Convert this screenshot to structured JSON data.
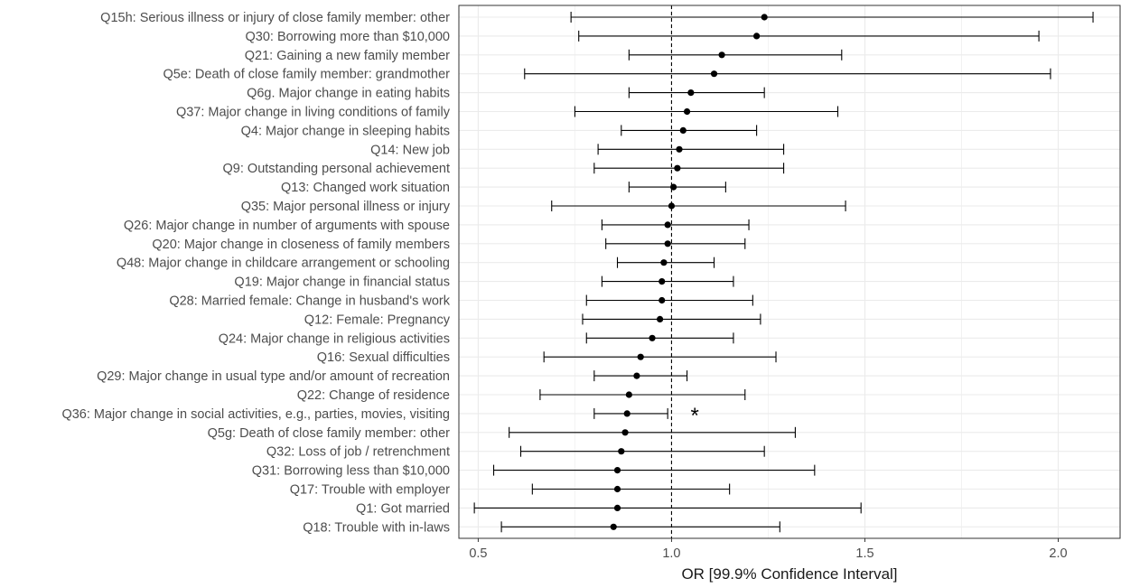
{
  "chart_data": {
    "type": "scatter",
    "subtype": "forest-plot",
    "title": "",
    "xlabel": "OR [99.9% Confidence Interval]",
    "ylabel": "",
    "xlim": [
      0.45,
      2.16
    ],
    "x_ticks": [
      0.5,
      1.0,
      1.5,
      2.0
    ],
    "x_tick_labels": [
      "0.5",
      "1.0",
      "1.5",
      "2.0"
    ],
    "reference_line": 1.0,
    "grid": true,
    "legend": "none",
    "colors": {
      "point": "#000000",
      "errorbar": "#000000",
      "grid": "#ebebeb",
      "panel_border": "#333333",
      "reference_line": "#000000"
    },
    "points": [
      {
        "label": "Q15h: Serious illness or injury of close family member: other",
        "or": 1.24,
        "lo": 0.74,
        "hi": 2.09
      },
      {
        "label": "Q30: Borrowing more than $10,000",
        "or": 1.22,
        "lo": 0.76,
        "hi": 1.95
      },
      {
        "label": "Q21: Gaining a new family member",
        "or": 1.13,
        "lo": 0.89,
        "hi": 1.44
      },
      {
        "label": "Q5e: Death of close family member: grandmother",
        "or": 1.11,
        "lo": 0.62,
        "hi": 1.98
      },
      {
        "label": "Q6g. Major change in eating habits",
        "or": 1.05,
        "lo": 0.89,
        "hi": 1.24
      },
      {
        "label": "Q37: Major change in living conditions of family",
        "or": 1.04,
        "lo": 0.75,
        "hi": 1.43
      },
      {
        "label": "Q4: Major change in sleeping habits",
        "or": 1.03,
        "lo": 0.87,
        "hi": 1.22
      },
      {
        "label": "Q14: New job",
        "or": 1.02,
        "lo": 0.81,
        "hi": 1.29
      },
      {
        "label": "Q9: Outstanding personal achievement",
        "or": 1.015,
        "lo": 0.8,
        "hi": 1.29
      },
      {
        "label": "Q13: Changed work situation",
        "or": 1.005,
        "lo": 0.89,
        "hi": 1.14
      },
      {
        "label": "Q35: Major personal illness or injury",
        "or": 1.0,
        "lo": 0.69,
        "hi": 1.45
      },
      {
        "label": "Q26: Major change in number of arguments with spouse",
        "or": 0.99,
        "lo": 0.82,
        "hi": 1.2
      },
      {
        "label": "Q20: Major change in closeness of family members",
        "or": 0.99,
        "lo": 0.83,
        "hi": 1.19
      },
      {
        "label": "Q48: Major change in childcare arrangement or schooling",
        "or": 0.98,
        "lo": 0.86,
        "hi": 1.11
      },
      {
        "label": "Q19: Major change in financial status",
        "or": 0.975,
        "lo": 0.82,
        "hi": 1.16
      },
      {
        "label": "Q28: Married female: Change in husband's work",
        "or": 0.975,
        "lo": 0.78,
        "hi": 1.21
      },
      {
        "label": "Q12: Female: Pregnancy",
        "or": 0.97,
        "lo": 0.77,
        "hi": 1.23
      },
      {
        "label": "Q24: Major change in religious activities",
        "or": 0.95,
        "lo": 0.78,
        "hi": 1.16
      },
      {
        "label": "Q16: Sexual difficulties",
        "or": 0.92,
        "lo": 0.67,
        "hi": 1.27
      },
      {
        "label": "Q29: Major change in usual type and/or amount of recreation",
        "or": 0.91,
        "lo": 0.8,
        "hi": 1.04
      },
      {
        "label": "Q22: Change of residence",
        "or": 0.89,
        "lo": 0.66,
        "hi": 1.19
      },
      {
        "label": "Q36: Major change in social activities, e.g., parties, movies, visiting",
        "or": 0.885,
        "lo": 0.8,
        "hi": 0.99,
        "annotation": "*"
      },
      {
        "label": "Q5g: Death of close family member: other",
        "or": 0.88,
        "lo": 0.58,
        "hi": 1.32
      },
      {
        "label": "Q32:  Loss of job / retrenchment",
        "or": 0.87,
        "lo": 0.61,
        "hi": 1.24
      },
      {
        "label": "Q31: Borrowing less than $10,000",
        "or": 0.86,
        "lo": 0.54,
        "hi": 1.37
      },
      {
        "label": "Q17: Trouble with employer",
        "or": 0.86,
        "lo": 0.64,
        "hi": 1.15
      },
      {
        "label": "Q1: Got married",
        "or": 0.86,
        "lo": 0.49,
        "hi": 1.49
      },
      {
        "label": "Q18: Trouble with in-laws",
        "or": 0.85,
        "lo": 0.56,
        "hi": 1.28
      }
    ]
  }
}
